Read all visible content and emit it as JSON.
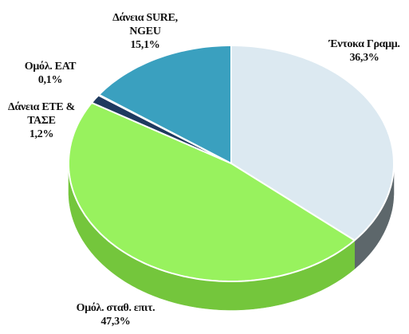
{
  "chart_data": {
    "type": "pie3d",
    "categories": [
      "Έντοκα Γραμμ.",
      "Ομόλ. σταθ. επιτ.",
      "Δάνεια ΕΤΕ & ΤΑΣΕ",
      "Ομόλ. ΕΑΤ",
      "Δάνεια SURE, NGEU"
    ],
    "values": [
      36.3,
      47.3,
      1.2,
      0.1,
      15.1
    ],
    "value_labels": [
      "36,3%",
      "47,3%",
      "1,2%",
      "0,1%",
      "15,1%"
    ],
    "colors": [
      "#dce9f1",
      "#98f25e",
      "#1f3a5f",
      "#e46c0a",
      "#3aa0bf"
    ],
    "side_colors": [
      "#5d676b",
      "#74c63c",
      "#14263f",
      "#a84f07",
      "#267a93"
    ]
  }
}
